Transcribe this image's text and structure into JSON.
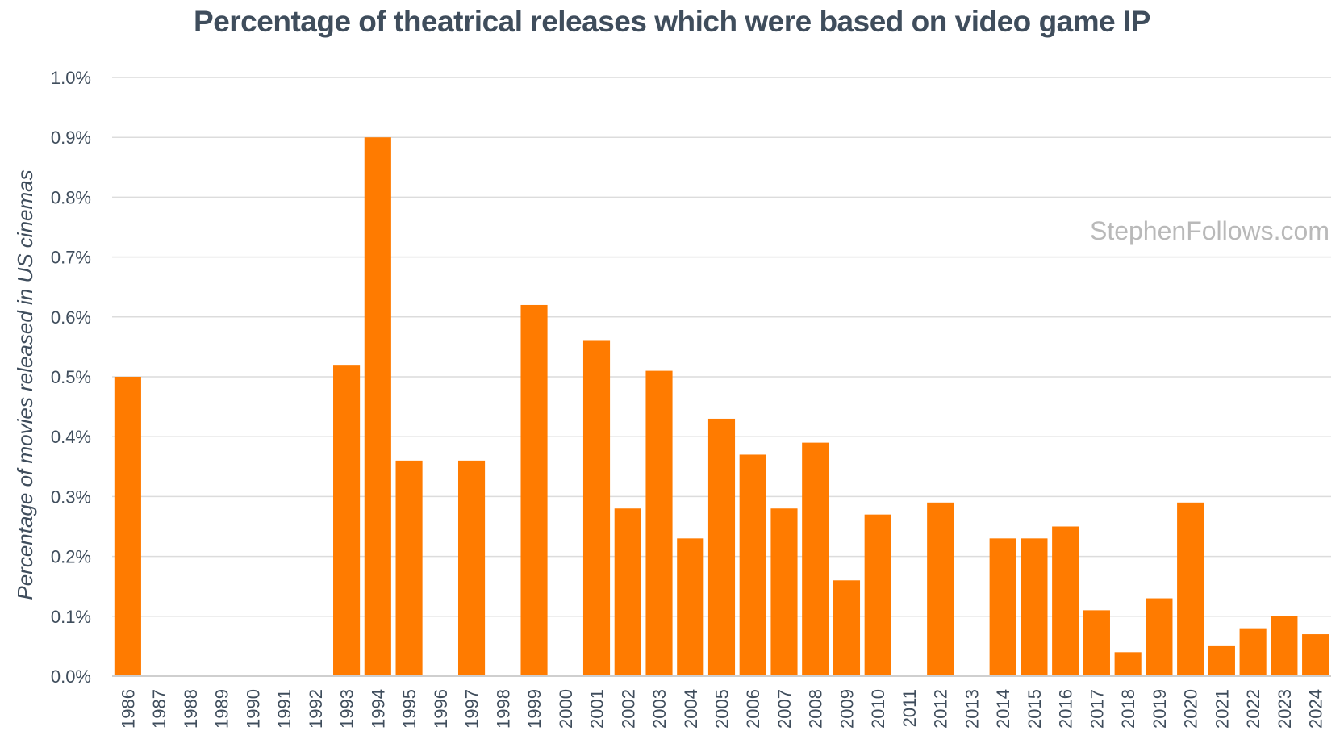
{
  "chart_data": {
    "type": "bar",
    "title": "Percentage of theatrical releases which were based on video game IP",
    "ylabel": "Percentage of movies released in US cinemas",
    "xlabel": "",
    "ylim": [
      0,
      1.0
    ],
    "yticks": [
      "0.0%",
      "0.1%",
      "0.2%",
      "0.3%",
      "0.4%",
      "0.5%",
      "0.6%",
      "0.7%",
      "0.8%",
      "0.9%",
      "1.0%"
    ],
    "grid": true,
    "watermark": "StephenFollows.com",
    "bar_color": "#ff7b00",
    "categories": [
      "1986",
      "1987",
      "1988",
      "1989",
      "1990",
      "1991",
      "1992",
      "1993",
      "1994",
      "1995",
      "1996",
      "1997",
      "1998",
      "1999",
      "2000",
      "2001",
      "2002",
      "2003",
      "2004",
      "2005",
      "2006",
      "2007",
      "2008",
      "2009",
      "2010",
      "2011",
      "2012",
      "2013",
      "2014",
      "2015",
      "2016",
      "2017",
      "2018",
      "2019",
      "2020",
      "2021",
      "2022",
      "2023",
      "2024"
    ],
    "values": [
      0.5,
      0,
      0,
      0,
      0,
      0,
      0,
      0.52,
      0.9,
      0.36,
      0,
      0.36,
      0,
      0.62,
      0,
      0.56,
      0.28,
      0.51,
      0.23,
      0.43,
      0.37,
      0.28,
      0.39,
      0.16,
      0.27,
      0,
      0.29,
      0,
      0.23,
      0.23,
      0.25,
      0.11,
      0.04,
      0.13,
      0.29,
      0.05,
      0.08,
      0.1,
      0.07
    ]
  }
}
